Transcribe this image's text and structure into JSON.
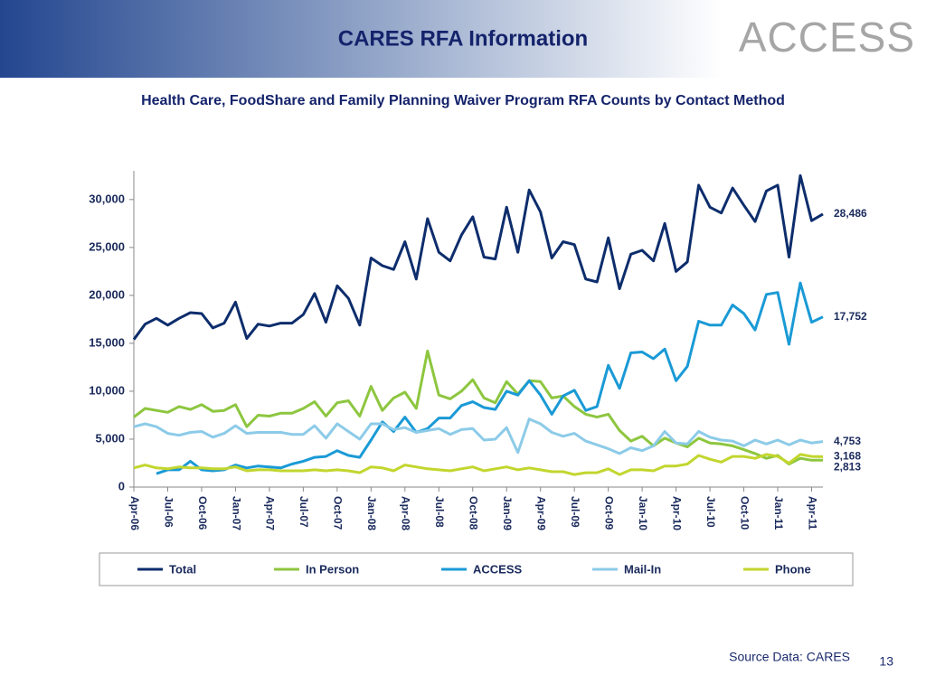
{
  "header": {
    "title": "CARES RFA Information",
    "logo": "ACCESS"
  },
  "chart_data": {
    "type": "line",
    "title": "Health Care, FoodShare and Family Planning Waiver Program RFA Counts by Contact Method",
    "categories": [
      "Apr-06",
      null,
      null,
      "Jul-06",
      null,
      null,
      "Oct-06",
      null,
      null,
      "Jan-07",
      null,
      null,
      "Apr-07",
      null,
      null,
      "Jul-07",
      null,
      null,
      "Oct-07",
      null,
      null,
      "Jan-08",
      null,
      null,
      "Apr-08",
      null,
      null,
      "Jul-08",
      null,
      null,
      "Oct-08",
      null,
      null,
      "Jan-09",
      null,
      null,
      "Apr-09",
      null,
      null,
      "Jul-09",
      null,
      null,
      "Oct-09",
      null,
      null,
      "Jan-10",
      null,
      null,
      "Apr-10",
      null,
      null,
      "Jul-10",
      null,
      null,
      "Oct-10",
      null,
      null,
      "Jan-11",
      null,
      null,
      "Apr-11",
      null
    ],
    "ylim": [
      0,
      33000
    ],
    "yticks": [
      0,
      {
        "value": 5000,
        "label": "5,000"
      },
      {
        "value": 10000,
        "label": "10,000"
      },
      {
        "value": 15000,
        "label": "15,000"
      },
      {
        "value": 20000,
        "label": "20,000"
      },
      {
        "value": 25000,
        "label": "25,000"
      },
      {
        "value": 30000,
        "label": "30,000"
      }
    ],
    "grid": false,
    "legend": "bottom",
    "series": [
      {
        "name": "Total",
        "color": "#0d2d6c",
        "values": [
          15400,
          17000,
          17600,
          16900,
          17600,
          18200,
          18100,
          16600,
          17100,
          19300,
          15500,
          17000,
          16800,
          17100,
          17100,
          18000,
          20200,
          17200,
          21000,
          19700,
          16900,
          23900,
          23100,
          22700,
          25600,
          21700,
          28000,
          24500,
          23600,
          26300,
          28200,
          24000,
          23800,
          29200,
          24500,
          31000,
          28700,
          23900,
          25600,
          25300,
          21700,
          21400,
          26000,
          20700,
          24300,
          24700,
          23600,
          27500,
          22500,
          23500,
          31500,
          29200,
          28600,
          31200,
          29400,
          27700,
          30900,
          31500,
          24000,
          32500,
          27800,
          28486
        ],
        "value_labels": [
          null,
          null,
          null,
          null,
          null,
          null,
          null,
          null,
          null,
          null,
          null,
          null,
          null,
          null,
          null,
          null,
          null,
          null,
          null,
          null,
          null,
          null,
          null,
          null,
          null,
          null,
          null,
          null,
          null,
          null,
          null,
          null,
          null,
          null,
          null,
          null,
          null,
          null,
          null,
          null,
          null,
          null,
          null,
          null,
          null,
          null,
          null,
          null,
          null,
          null,
          null,
          null,
          null,
          null,
          null,
          null,
          null,
          null,
          null,
          null,
          null,
          "28,486"
        ]
      },
      {
        "name": "In Person",
        "color": "#8dc63f",
        "values": [
          7300,
          8200,
          8000,
          7800,
          8400,
          8100,
          8600,
          7900,
          8000,
          8600,
          6300,
          7500,
          7400,
          7700,
          7700,
          8200,
          8900,
          7400,
          8800,
          9000,
          7400,
          10500,
          8000,
          9300,
          9900,
          8200,
          14200,
          9600,
          9200,
          10000,
          11200,
          9300,
          8800,
          11000,
          9700,
          11100,
          11000,
          9300,
          9500,
          8400,
          7600,
          7300,
          7600,
          5900,
          4800,
          5300,
          4300,
          5100,
          4600,
          4200,
          5100,
          4600,
          4500,
          4300,
          3900,
          3500,
          3000,
          3300,
          2400,
          3000,
          2800,
          2813
        ],
        "value_labels": [
          null,
          null,
          null,
          null,
          null,
          null,
          null,
          null,
          null,
          null,
          null,
          null,
          null,
          null,
          null,
          null,
          null,
          null,
          null,
          null,
          null,
          null,
          null,
          null,
          null,
          null,
          null,
          null,
          null,
          null,
          null,
          null,
          null,
          null,
          null,
          null,
          null,
          null,
          null,
          null,
          null,
          null,
          null,
          null,
          null,
          null,
          null,
          null,
          null,
          null,
          null,
          null,
          null,
          null,
          null,
          null,
          null,
          null,
          null,
          null,
          null,
          "2,813"
        ]
      },
      {
        "name": "ACCESS",
        "color": "#1a9ad6",
        "values": [
          null,
          null,
          1400,
          1800,
          1800,
          2700,
          1800,
          1700,
          1800,
          2300,
          2000,
          2200,
          2100,
          2000,
          2400,
          2700,
          3100,
          3200,
          3800,
          3300,
          3100,
          4900,
          6800,
          5800,
          7300,
          5700,
          6100,
          7200,
          7200,
          8500,
          8900,
          8300,
          8100,
          10000,
          9600,
          11100,
          9600,
          7600,
          9500,
          10100,
          8000,
          8400,
          12700,
          10300,
          14000,
          14100,
          13400,
          14400,
          11100,
          12600,
          17300,
          16900,
          16900,
          19000,
          18100,
          16400,
          20100,
          20300,
          14900,
          21300,
          17200,
          17752
        ],
        "value_labels": [
          null,
          null,
          null,
          null,
          null,
          null,
          null,
          null,
          null,
          null,
          null,
          null,
          null,
          null,
          null,
          null,
          null,
          null,
          null,
          null,
          null,
          null,
          null,
          null,
          null,
          null,
          null,
          null,
          null,
          null,
          null,
          null,
          null,
          null,
          null,
          null,
          null,
          null,
          null,
          null,
          null,
          null,
          null,
          null,
          null,
          null,
          null,
          null,
          null,
          null,
          null,
          null,
          null,
          null,
          null,
          null,
          null,
          null,
          null,
          null,
          null,
          "17,752"
        ]
      },
      {
        "name": "Mail-In",
        "color": "#8ccbe8",
        "values": [
          6300,
          6600,
          6300,
          5600,
          5400,
          5700,
          5800,
          5200,
          5600,
          6400,
          5600,
          5700,
          5700,
          5700,
          5500,
          5500,
          6400,
          5100,
          6600,
          5800,
          5000,
          6600,
          6600,
          6000,
          6200,
          5700,
          5900,
          6100,
          5500,
          6000,
          6100,
          4900,
          5000,
          6200,
          3600,
          7100,
          6600,
          5700,
          5300,
          5600,
          4800,
          4400,
          4000,
          3500,
          4100,
          3800,
          4300,
          5800,
          4600,
          4500,
          5800,
          5200,
          4900,
          4800,
          4300,
          4900,
          4500,
          4900,
          4400,
          4900,
          4600,
          4753
        ],
        "value_labels": [
          null,
          null,
          null,
          null,
          null,
          null,
          null,
          null,
          null,
          null,
          null,
          null,
          null,
          null,
          null,
          null,
          null,
          null,
          null,
          null,
          null,
          null,
          null,
          null,
          null,
          null,
          null,
          null,
          null,
          null,
          null,
          null,
          null,
          null,
          null,
          null,
          null,
          null,
          null,
          null,
          null,
          null,
          null,
          null,
          null,
          null,
          null,
          null,
          null,
          null,
          null,
          null,
          null,
          null,
          null,
          null,
          null,
          null,
          null,
          null,
          null,
          "4,753"
        ]
      },
      {
        "name": "Phone",
        "color": "#c2d62e",
        "values": [
          2000,
          2300,
          2000,
          1900,
          2100,
          2000,
          2000,
          1900,
          1900,
          2100,
          1700,
          1800,
          1800,
          1700,
          1700,
          1700,
          1800,
          1700,
          1800,
          1700,
          1500,
          2100,
          2000,
          1700,
          2300,
          2100,
          1900,
          1800,
          1700,
          1900,
          2100,
          1700,
          1900,
          2100,
          1800,
          2000,
          1800,
          1600,
          1600,
          1300,
          1500,
          1500,
          1900,
          1300,
          1800,
          1800,
          1700,
          2200,
          2200,
          2400,
          3300,
          2900,
          2600,
          3200,
          3200,
          3000,
          3400,
          3200,
          2500,
          3400,
          3200,
          3168
        ],
        "value_labels": [
          null,
          null,
          null,
          null,
          null,
          null,
          null,
          null,
          null,
          null,
          null,
          null,
          null,
          null,
          null,
          null,
          null,
          null,
          null,
          null,
          null,
          null,
          null,
          null,
          null,
          null,
          null,
          null,
          null,
          null,
          null,
          null,
          null,
          null,
          null,
          null,
          null,
          null,
          null,
          null,
          null,
          null,
          null,
          null,
          null,
          null,
          null,
          null,
          null,
          null,
          null,
          null,
          null,
          null,
          null,
          null,
          null,
          null,
          null,
          null,
          null,
          "3,168"
        ]
      }
    ]
  },
  "footer": {
    "source": "Source Data: CARES",
    "page": "13"
  }
}
